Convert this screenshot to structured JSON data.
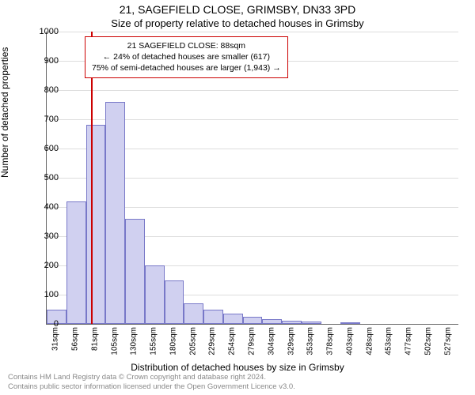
{
  "title_main": "21, SAGEFIELD CLOSE, GRIMSBY, DN33 3PD",
  "title_sub": "Size of property relative to detached houses in Grimsby",
  "ylabel": "Number of detached properties",
  "xlabel": "Distribution of detached houses by size in Grimsby",
  "chart": {
    "type": "histogram",
    "background_color": "#ffffff",
    "grid_color": "#dddddd",
    "axis_color": "#666666",
    "bar_fill": "#d0d0f0",
    "bar_border": "#7878c8",
    "marker_color": "#cc0000",
    "ylim": [
      0,
      1000
    ],
    "ytick_step": 100,
    "x_categories": [
      "31sqm",
      "56sqm",
      "81sqm",
      "105sqm",
      "130sqm",
      "155sqm",
      "180sqm",
      "205sqm",
      "229sqm",
      "254sqm",
      "279sqm",
      "304sqm",
      "329sqm",
      "353sqm",
      "378sqm",
      "403sqm",
      "428sqm",
      "453sqm",
      "477sqm",
      "502sqm",
      "527sqm"
    ],
    "values": [
      50,
      420,
      680,
      760,
      360,
      200,
      150,
      70,
      50,
      35,
      25,
      15,
      12,
      8,
      0,
      5,
      0,
      0,
      0,
      0,
      0
    ],
    "marker_value": 88,
    "x_min": 31,
    "x_bin_width": 25,
    "label_fontsize": 12,
    "tick_fontsize": 11
  },
  "annotation": {
    "line1": "21 SAGEFIELD CLOSE: 88sqm",
    "line2": "← 24% of detached houses are smaller (617)",
    "line3": "75% of semi-detached houses are larger (1,943) →",
    "border_color": "#cc0000",
    "bg_color": "#ffffff"
  },
  "footer": {
    "line1": "Contains HM Land Registry data © Crown copyright and database right 2024.",
    "line2": "Contains public sector information licensed under the Open Government Licence v3.0.",
    "color": "#888888"
  }
}
